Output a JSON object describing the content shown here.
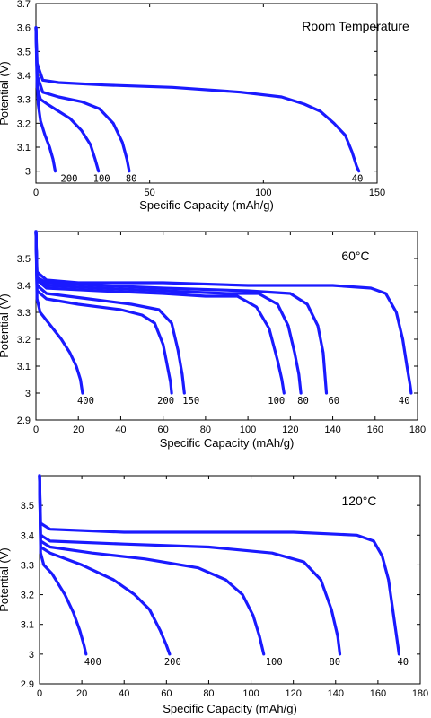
{
  "chart_data": [
    {
      "type": "line",
      "title": "Room Temperature",
      "xlabel": "Specific Capacity (mAh/g)",
      "ylabel": "Potential (V)",
      "xlim": [
        0,
        150
      ],
      "ylim": [
        2.95,
        3.7
      ],
      "xticks": [
        "0",
        "50",
        "100",
        "150"
      ],
      "yticks": [
        "3",
        "3.1",
        "3.2",
        "3.3",
        "3.4",
        "3.5",
        "3.6",
        "3.7"
      ],
      "series": [
        {
          "name": "200",
          "points": [
            [
              0,
              3.6
            ],
            [
              0.5,
              3.4
            ],
            [
              1,
              3.28
            ],
            [
              2,
              3.21
            ],
            [
              4,
              3.15
            ],
            [
              6,
              3.1
            ],
            [
              7.5,
              3.05
            ],
            [
              8.5,
              3.0
            ]
          ]
        },
        {
          "name": "100",
          "points": [
            [
              0,
              3.6
            ],
            [
              0.5,
              3.35
            ],
            [
              2,
              3.3
            ],
            [
              5,
              3.28
            ],
            [
              10,
              3.25
            ],
            [
              15,
              3.22
            ],
            [
              20,
              3.17
            ],
            [
              24,
              3.11
            ],
            [
              26,
              3.05
            ],
            [
              27.5,
              3.0
            ]
          ]
        },
        {
          "name": "80",
          "points": [
            [
              0,
              3.6
            ],
            [
              0.5,
              3.4
            ],
            [
              3,
              3.33
            ],
            [
              10,
              3.31
            ],
            [
              20,
              3.29
            ],
            [
              28,
              3.26
            ],
            [
              34,
              3.2
            ],
            [
              38,
              3.12
            ],
            [
              40,
              3.05
            ],
            [
              41,
              3.0
            ]
          ]
        },
        {
          "name": "40",
          "points": [
            [
              0,
              3.6
            ],
            [
              0.5,
              3.45
            ],
            [
              3,
              3.38
            ],
            [
              10,
              3.37
            ],
            [
              30,
              3.36
            ],
            [
              60,
              3.35
            ],
            [
              90,
              3.33
            ],
            [
              108,
              3.31
            ],
            [
              118,
              3.28
            ],
            [
              125,
              3.25
            ],
            [
              131,
              3.2
            ],
            [
              136,
              3.15
            ],
            [
              139,
              3.08
            ],
            [
              141,
              3.02
            ],
            [
              142,
              3.0
            ]
          ]
        }
      ]
    },
    {
      "type": "line",
      "title": "60°C",
      "xlabel": "Specific Capacity (mAh/g)",
      "ylabel": "Potential (V)",
      "xlim": [
        0,
        180
      ],
      "ylim": [
        2.9,
        3.6
      ],
      "xticks": [
        "0",
        "20",
        "40",
        "60",
        "80",
        "100",
        "120",
        "140",
        "160",
        "180"
      ],
      "yticks": [
        "2.9",
        "3",
        "3.1",
        "3.2",
        "3.3",
        "3.4",
        "3.5"
      ],
      "series": [
        {
          "name": "400",
          "points": [
            [
              0,
              3.6
            ],
            [
              0.5,
              3.35
            ],
            [
              2,
              3.3
            ],
            [
              6,
              3.26
            ],
            [
              12,
              3.2
            ],
            [
              16,
              3.15
            ],
            [
              19,
              3.1
            ],
            [
              21,
              3.05
            ],
            [
              22,
              3.0
            ]
          ]
        },
        {
          "name": "200",
          "points": [
            [
              0,
              3.6
            ],
            [
              0.5,
              3.38
            ],
            [
              5,
              3.35
            ],
            [
              20,
              3.33
            ],
            [
              40,
              3.31
            ],
            [
              50,
              3.29
            ],
            [
              56,
              3.26
            ],
            [
              60,
              3.18
            ],
            [
              62,
              3.1
            ],
            [
              63.5,
              3.04
            ],
            [
              64,
              3.0
            ]
          ]
        },
        {
          "name": "150",
          "points": [
            [
              0,
              3.6
            ],
            [
              0.5,
              3.4
            ],
            [
              5,
              3.37
            ],
            [
              25,
              3.35
            ],
            [
              45,
              3.33
            ],
            [
              58,
              3.31
            ],
            [
              64,
              3.26
            ],
            [
              67,
              3.16
            ],
            [
              69,
              3.07
            ],
            [
              70,
              3.0
            ]
          ]
        },
        {
          "name": "100",
          "points": [
            [
              0,
              3.6
            ],
            [
              0.5,
              3.42
            ],
            [
              5,
              3.39
            ],
            [
              30,
              3.38
            ],
            [
              60,
              3.37
            ],
            [
              80,
              3.36
            ],
            [
              95,
              3.36
            ],
            [
              104,
              3.32
            ],
            [
              110,
              3.24
            ],
            [
              114,
              3.12
            ],
            [
              116,
              3.05
            ],
            [
              117,
              3.0
            ]
          ]
        },
        {
          "name": "80",
          "points": [
            [
              0,
              3.6
            ],
            [
              0.5,
              3.42
            ],
            [
              5,
              3.4
            ],
            [
              30,
              3.39
            ],
            [
              60,
              3.38
            ],
            [
              90,
              3.37
            ],
            [
              105,
              3.37
            ],
            [
              114,
              3.33
            ],
            [
              119,
              3.25
            ],
            [
              122,
              3.15
            ],
            [
              124,
              3.07
            ],
            [
              125,
              3.0
            ]
          ]
        },
        {
          "name": "60",
          "points": [
            [
              0,
              3.6
            ],
            [
              0.5,
              3.43
            ],
            [
              5,
              3.41
            ],
            [
              30,
              3.4
            ],
            [
              60,
              3.39
            ],
            [
              100,
              3.38
            ],
            [
              120,
              3.37
            ],
            [
              128,
              3.33
            ],
            [
              133,
              3.25
            ],
            [
              135.5,
              3.15
            ],
            [
              136.5,
              3.05
            ],
            [
              137,
              3.0
            ]
          ]
        },
        {
          "name": "40",
          "points": [
            [
              0,
              3.6
            ],
            [
              0.5,
              3.45
            ],
            [
              5,
              3.42
            ],
            [
              20,
              3.41
            ],
            [
              60,
              3.41
            ],
            [
              100,
              3.4
            ],
            [
              140,
              3.4
            ],
            [
              158,
              3.39
            ],
            [
              165,
              3.37
            ],
            [
              170,
              3.3
            ],
            [
              173,
              3.2
            ],
            [
              175,
              3.1
            ],
            [
              176.5,
              3.03
            ],
            [
              177,
              3.0
            ]
          ]
        }
      ]
    },
    {
      "type": "line",
      "title": "120°C",
      "xlabel": "Specific Capacity (mAh/g)",
      "ylabel": "Potential (V)",
      "xlim": [
        0,
        180
      ],
      "ylim": [
        2.9,
        3.6
      ],
      "xticks": [
        "0",
        "20",
        "40",
        "60",
        "80",
        "100",
        "120",
        "140",
        "160",
        "180"
      ],
      "yticks": [
        "2.9",
        "3",
        "3.1",
        "3.2",
        "3.3",
        "3.4",
        "3.5"
      ],
      "series": [
        {
          "name": "400",
          "points": [
            [
              0,
              3.6
            ],
            [
              0.5,
              3.34
            ],
            [
              2,
              3.3
            ],
            [
              6,
              3.27
            ],
            [
              12,
              3.2
            ],
            [
              16,
              3.14
            ],
            [
              19,
              3.08
            ],
            [
              21,
              3.03
            ],
            [
              22,
              3.0
            ]
          ]
        },
        {
          "name": "200",
          "points": [
            [
              0,
              3.6
            ],
            [
              0.5,
              3.36
            ],
            [
              5,
              3.34
            ],
            [
              20,
              3.3
            ],
            [
              35,
              3.25
            ],
            [
              45,
              3.2
            ],
            [
              52,
              3.15
            ],
            [
              57,
              3.08
            ],
            [
              60,
              3.03
            ],
            [
              61.5,
              3.0
            ]
          ]
        },
        {
          "name": "100",
          "points": [
            [
              0,
              3.6
            ],
            [
              0.5,
              3.38
            ],
            [
              5,
              3.36
            ],
            [
              25,
              3.34
            ],
            [
              50,
              3.32
            ],
            [
              75,
              3.29
            ],
            [
              88,
              3.25
            ],
            [
              96,
              3.2
            ],
            [
              101,
              3.13
            ],
            [
              104,
              3.06
            ],
            [
              106,
              3.0
            ]
          ]
        },
        {
          "name": "80",
          "points": [
            [
              0,
              3.6
            ],
            [
              0.5,
              3.4
            ],
            [
              5,
              3.38
            ],
            [
              40,
              3.37
            ],
            [
              80,
              3.36
            ],
            [
              110,
              3.34
            ],
            [
              125,
              3.31
            ],
            [
              133,
              3.25
            ],
            [
              138,
              3.15
            ],
            [
              141,
              3.06
            ],
            [
              142,
              3.0
            ]
          ]
        },
        {
          "name": "40",
          "points": [
            [
              0,
              3.6
            ],
            [
              0.5,
              3.44
            ],
            [
              5,
              3.42
            ],
            [
              40,
              3.41
            ],
            [
              80,
              3.41
            ],
            [
              120,
              3.41
            ],
            [
              150,
              3.4
            ],
            [
              158,
              3.38
            ],
            [
              162,
              3.33
            ],
            [
              165,
              3.25
            ],
            [
              167,
              3.15
            ],
            [
              169,
              3.05
            ],
            [
              170,
              3.0
            ]
          ]
        }
      ]
    }
  ]
}
